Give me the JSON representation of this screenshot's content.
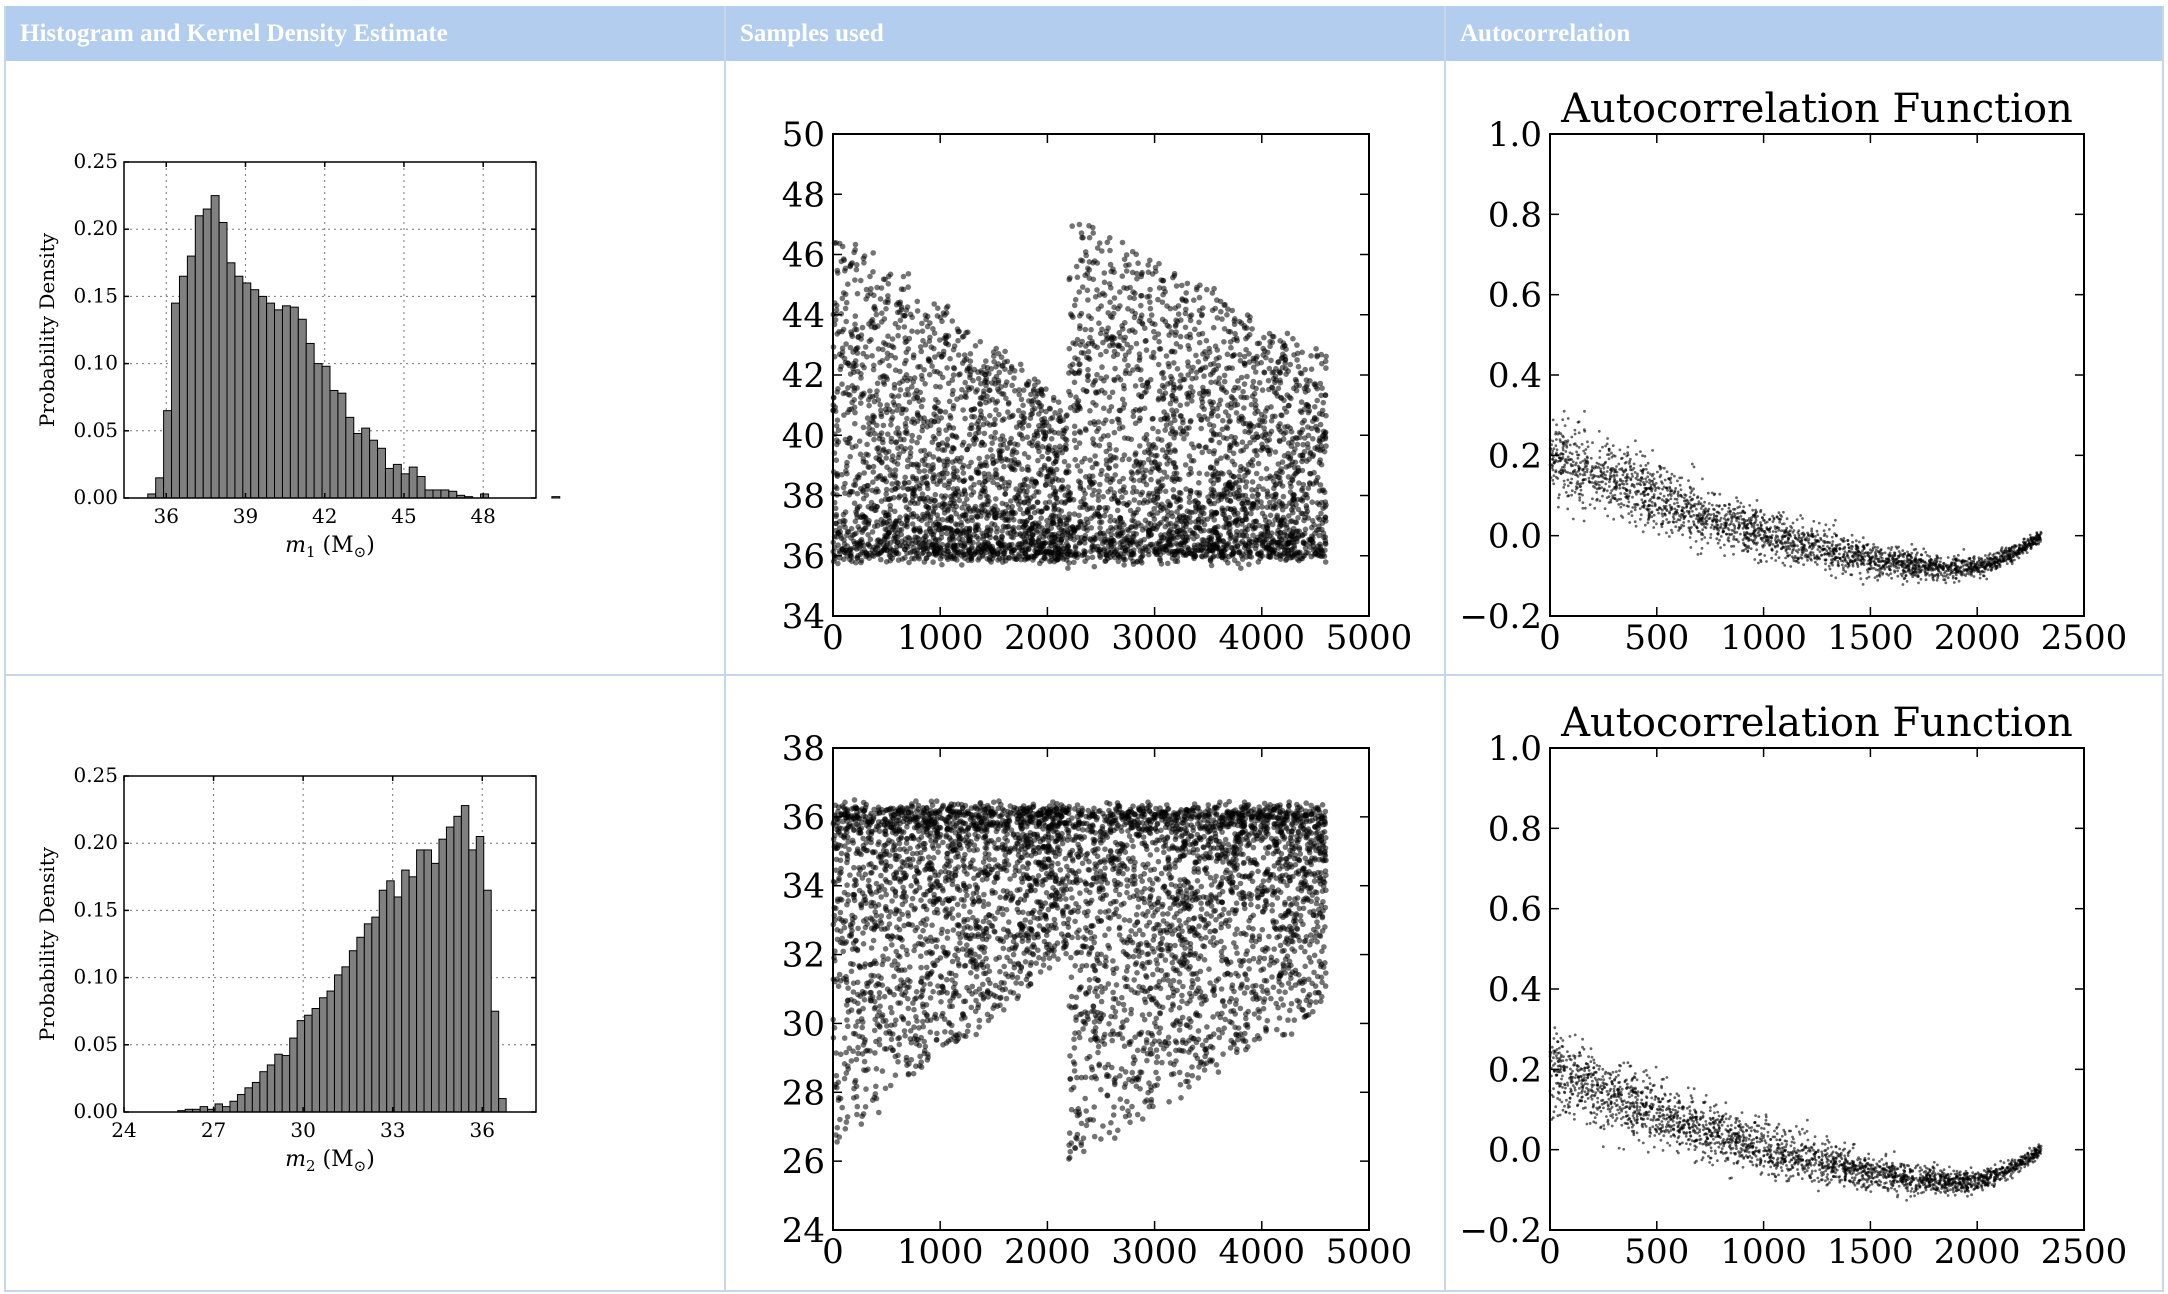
{
  "table": {
    "headers": [
      "Histogram and Kernel Density Estimate",
      "Samples used",
      "Autocorrelation"
    ]
  },
  "rows": [
    {
      "param": "m1",
      "histogram": {
        "type": "bar",
        "ylabel": "Probability Density",
        "xlabel_sym": "m",
        "xlabel_sub": "1",
        "xlabel_unit": " (M",
        "xlabel_unit_sym": "⊙",
        "xlabel_close": ")",
        "xlim": [
          34.4,
          50.0
        ],
        "ylim": [
          0,
          0.25
        ],
        "xticks": [
          36,
          39,
          42,
          45,
          48
        ],
        "yticks": [
          0.0,
          0.05,
          0.1,
          0.15,
          0.2,
          0.25
        ],
        "ytick_labels": [
          "0.00",
          "0.05",
          "0.10",
          "0.15",
          "0.20",
          "0.25"
        ],
        "bin_start": 35.3,
        "bin_width": 0.3,
        "values": [
          0.003,
          0.015,
          0.065,
          0.145,
          0.165,
          0.18,
          0.21,
          0.215,
          0.225,
          0.205,
          0.175,
          0.165,
          0.16,
          0.155,
          0.15,
          0.145,
          0.14,
          0.143,
          0.142,
          0.133,
          0.115,
          0.1,
          0.098,
          0.08,
          0.078,
          0.06,
          0.048,
          0.052,
          0.043,
          0.037,
          0.022,
          0.025,
          0.018,
          0.023,
          0.016,
          0.006,
          0.006,
          0.006,
          0.005,
          0.002,
          0.001,
          0.0,
          0.003,
          0.0,
          0.0,
          0.0,
          0.0,
          0.0,
          0.0,
          0.0,
          0.0,
          0.001
        ]
      },
      "trace": {
        "type": "scatter",
        "xlim": [
          0,
          5000
        ],
        "ylim": [
          34,
          50
        ],
        "xticks": [
          0,
          1000,
          2000,
          3000,
          4000,
          5000
        ],
        "yticks": [
          34,
          36,
          38,
          40,
          42,
          44,
          46,
          48,
          50
        ],
        "n_samples": 4600,
        "break_at": 2200,
        "floor": 36.0,
        "top_left_start": 47.0,
        "top_left_end": 41.0,
        "top_right_start": 47.5,
        "top_right_end": 42.5,
        "mode": 37.5
      },
      "acf": {
        "type": "scatter",
        "title": "Autocorrelation Function",
        "xlim": [
          0,
          2500
        ],
        "ylim": [
          -0.2,
          1.0
        ],
        "xticks": [
          0,
          500,
          1000,
          1500,
          2000,
          2500
        ],
        "yticks": [
          -0.2,
          0.0,
          0.2,
          0.4,
          0.6,
          0.8,
          1.0
        ],
        "ytick_labels": [
          "−0.2",
          "0.0",
          "0.2",
          "0.4",
          "0.6",
          "0.8",
          "1.0"
        ],
        "max_lag": 2300,
        "start": 0.2,
        "min_value": -0.08,
        "min_lag": 1900,
        "end": 0.0
      }
    },
    {
      "param": "m2",
      "histogram": {
        "type": "bar",
        "ylabel": "Probability Density",
        "xlabel_sym": "m",
        "xlabel_sub": "2",
        "xlabel_unit": " (M",
        "xlabel_unit_sym": "⊙",
        "xlabel_close": ")",
        "xlim": [
          24,
          37.8
        ],
        "ylim": [
          0,
          0.25
        ],
        "xticks": [
          24,
          27,
          30,
          33,
          36
        ],
        "yticks": [
          0.0,
          0.05,
          0.1,
          0.15,
          0.2,
          0.25
        ],
        "ytick_labels": [
          "0.00",
          "0.05",
          "0.10",
          "0.15",
          "0.20",
          "0.25"
        ],
        "bin_start": 25.8,
        "bin_width": 0.25,
        "values": [
          0.001,
          0.002,
          0.002,
          0.004,
          0.002,
          0.006,
          0.004,
          0.008,
          0.013,
          0.018,
          0.022,
          0.03,
          0.035,
          0.043,
          0.042,
          0.055,
          0.068,
          0.072,
          0.077,
          0.085,
          0.09,
          0.102,
          0.108,
          0.12,
          0.13,
          0.14,
          0.145,
          0.165,
          0.172,
          0.16,
          0.18,
          0.175,
          0.195,
          0.195,
          0.185,
          0.203,
          0.212,
          0.22,
          0.228,
          0.195,
          0.205,
          0.165,
          0.075,
          0.01
        ]
      },
      "trace": {
        "type": "scatter",
        "xlim": [
          0,
          5000
        ],
        "ylim": [
          24,
          38
        ],
        "xticks": [
          0,
          1000,
          2000,
          3000,
          4000,
          5000
        ],
        "yticks": [
          24,
          26,
          28,
          30,
          32,
          34,
          36,
          38
        ],
        "n_samples": 4600,
        "break_at": 2200,
        "ceiling": 36.2,
        "low_left_start": 26.5,
        "low_left_end": 32.0,
        "low_right_start": 26.0,
        "low_right_end": 30.5,
        "mode": 35.0
      },
      "acf": {
        "type": "scatter",
        "title": "Autocorrelation Function",
        "xlim": [
          0,
          2500
        ],
        "ylim": [
          -0.2,
          1.0
        ],
        "xticks": [
          0,
          500,
          1000,
          1500,
          2000,
          2500
        ],
        "yticks": [
          -0.2,
          0.0,
          0.2,
          0.4,
          0.6,
          0.8,
          1.0
        ],
        "ytick_labels": [
          "−0.2",
          "0.0",
          "0.2",
          "0.4",
          "0.6",
          "0.8",
          "1.0"
        ],
        "max_lag": 2300,
        "start": 0.2,
        "min_value": -0.08,
        "min_lag": 1900,
        "end": 0.0
      }
    }
  ]
}
